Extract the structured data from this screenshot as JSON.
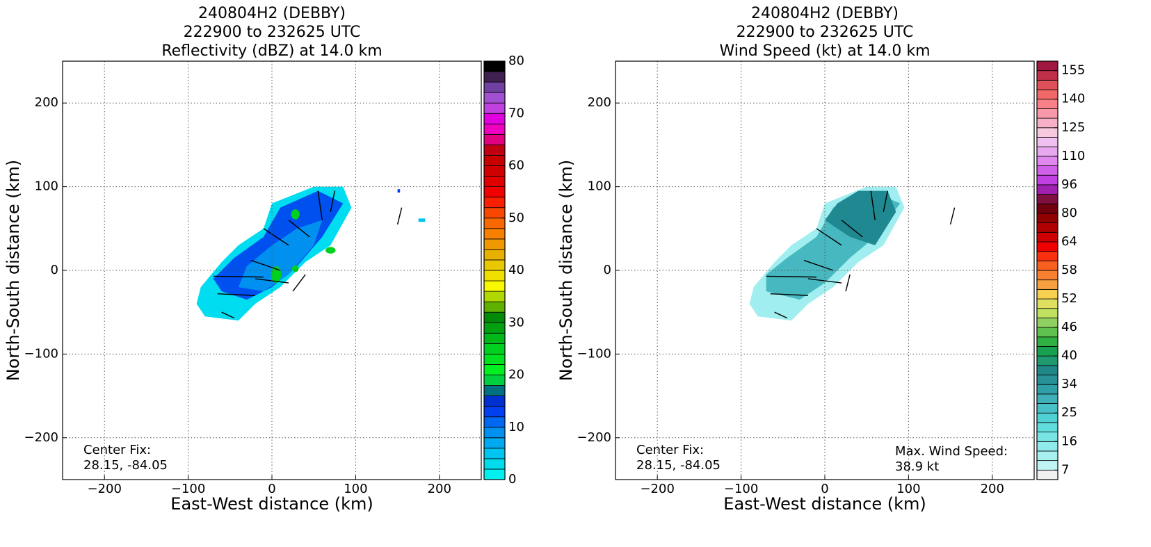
{
  "chart_data": [
    {
      "type": "heatmap",
      "title": [
        "240804H2 (DEBBY)",
        "222900 to 232625 UTC",
        "Reflectivity (dBZ) at 14.0 km"
      ],
      "x_label": "East-West distance (km)",
      "y_label": "North-South distance (km)",
      "xlim": [
        -250,
        250
      ],
      "ylim": [
        -250,
        250
      ],
      "xticks": [
        {
          "value": -200,
          "label": "−200"
        },
        {
          "value": -100,
          "label": "−100"
        },
        0,
        100,
        200
      ],
      "yticks": [
        {
          "value": -200,
          "label": "−200"
        },
        {
          "value": -100,
          "label": "−100"
        },
        0,
        100,
        200
      ],
      "grid": true,
      "annotations": [
        "Center Fix:",
        "28.15, -84.05"
      ],
      "colorbar": {
        "lim": [
          0,
          80
        ],
        "ticks": [
          0,
          10,
          20,
          30,
          40,
          50,
          60,
          70,
          80
        ],
        "colors": [
          "#00f0f0",
          "#00dcec",
          "#00c4f0",
          "#00aaf0",
          "#0090f0",
          "#0068f0",
          "#0040f0",
          "#0030d0",
          "#007080",
          "#00d040",
          "#00f020",
          "#00e020",
          "#00d020",
          "#00b818",
          "#00a010",
          "#008a08",
          "#60b000",
          "#b0d800",
          "#f8f800",
          "#f0e000",
          "#e8c800",
          "#e8b000",
          "#f09800",
          "#f88000",
          "#f86800",
          "#f84800",
          "#f82000",
          "#f00000",
          "#e00000",
          "#d00000",
          "#c80000",
          "#c00010",
          "#e00080",
          "#f000c0",
          "#e000e0",
          "#c040e0",
          "#a050d0",
          "#7040a0",
          "#402050",
          "#000000"
        ]
      }
    },
    {
      "type": "heatmap",
      "title": [
        "240804H2 (DEBBY)",
        "222900 to 232625 UTC",
        "Wind Speed (kt) at 14.0 km"
      ],
      "x_label": "East-West distance (km)",
      "y_label": "North-South distance (km)",
      "xlim": [
        -250,
        250
      ],
      "ylim": [
        -250,
        250
      ],
      "xticks": [
        {
          "value": -200,
          "label": "−200"
        },
        {
          "value": -100,
          "label": "−100"
        },
        0,
        100,
        200
      ],
      "yticks": [
        {
          "value": -200,
          "label": "−200"
        },
        {
          "value": -100,
          "label": "−100"
        },
        0,
        100,
        200
      ],
      "grid": true,
      "annotations": [
        "Center Fix:",
        "28.15, -84.05",
        "Max. Wind Speed:",
        "38.9 kt"
      ],
      "colorbar": {
        "ticks": [
          7,
          16,
          25,
          34,
          40,
          46,
          52,
          58,
          64,
          80,
          96,
          110,
          125,
          140,
          155
        ],
        "colors": [
          "#f0f0f0",
          "#c0f4f4",
          "#a8f0f0",
          "#90ecec",
          "#78e4e4",
          "#60dcdc",
          "#50d0d4",
          "#48c0c8",
          "#40b0b8",
          "#30a0a8",
          "#289098",
          "#208888",
          "#209870",
          "#18a050",
          "#30b040",
          "#60c050",
          "#90d060",
          "#c0e060",
          "#e0e060",
          "#f8d050",
          "#f8a040",
          "#f88030",
          "#f86020",
          "#f83010",
          "#f00000",
          "#d00000",
          "#b00000",
          "#900000",
          "#700010",
          "#801040",
          "#a020b0",
          "#c040e0",
          "#d060e8",
          "#e088f0",
          "#e8a8f0",
          "#f0c0f0",
          "#f8c8e0",
          "#f8b0c8",
          "#f898a8",
          "#f88088",
          "#f06868",
          "#e05058",
          "#c03048",
          "#a01840"
        ]
      }
    }
  ]
}
